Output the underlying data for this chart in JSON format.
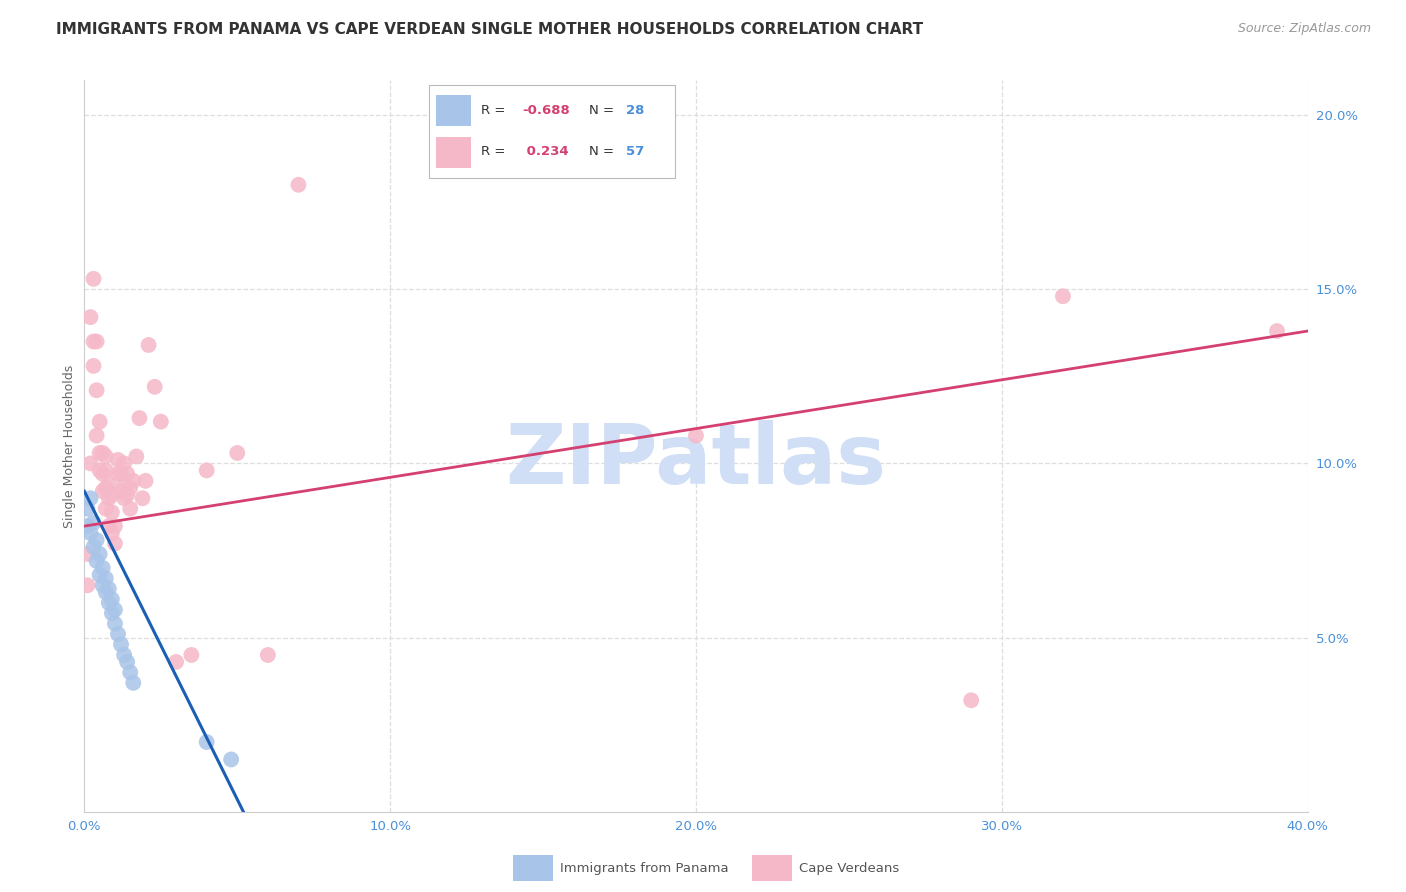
{
  "title": "IMMIGRANTS FROM PANAMA VS CAPE VERDEAN SINGLE MOTHER HOUSEHOLDS CORRELATION CHART",
  "source": "Source: ZipAtlas.com",
  "ylabel": "Single Mother Households",
  "watermark": "ZIPatlas",
  "legend_blue_r": "-0.688",
  "legend_blue_n": "28",
  "legend_pink_r": "0.234",
  "legend_pink_n": "57",
  "xlim": [
    0.0,
    0.4
  ],
  "ylim": [
    0.0,
    0.21
  ],
  "xticks": [
    0.0,
    0.1,
    0.2,
    0.3,
    0.4
  ],
  "yticks_right": [
    0.05,
    0.1,
    0.15,
    0.2
  ],
  "blue_scatter_color": "#a8c4e8",
  "pink_scatter_color": "#f5b8c8",
  "blue_line_color": "#1a5fb4",
  "pink_line_color": "#d44070",
  "tick_color": "#4a90d9",
  "grid_color": "#dedede",
  "background_color": "#ffffff",
  "title_color": "#333333",
  "source_color": "#999999",
  "ylabel_color": "#666666",
  "watermark_color": "#d0dff5",
  "title_fontsize": 11,
  "source_fontsize": 9,
  "tick_fontsize": 9.5,
  "ylabel_fontsize": 9,
  "watermark_fontsize": 60,
  "blue_points_x": [
    0.001,
    0.001,
    0.002,
    0.002,
    0.003,
    0.003,
    0.004,
    0.004,
    0.005,
    0.005,
    0.006,
    0.006,
    0.007,
    0.007,
    0.008,
    0.008,
    0.009,
    0.009,
    0.01,
    0.01,
    0.011,
    0.012,
    0.013,
    0.014,
    0.015,
    0.016,
    0.04,
    0.048
  ],
  "blue_points_y": [
    0.087,
    0.082,
    0.09,
    0.08,
    0.076,
    0.083,
    0.072,
    0.078,
    0.068,
    0.074,
    0.065,
    0.07,
    0.063,
    0.067,
    0.06,
    0.064,
    0.057,
    0.061,
    0.054,
    0.058,
    0.051,
    0.048,
    0.045,
    0.043,
    0.04,
    0.037,
    0.02,
    0.015
  ],
  "pink_points_x": [
    0.001,
    0.001,
    0.002,
    0.002,
    0.003,
    0.003,
    0.003,
    0.004,
    0.004,
    0.004,
    0.005,
    0.005,
    0.005,
    0.006,
    0.006,
    0.006,
    0.007,
    0.007,
    0.007,
    0.007,
    0.008,
    0.008,
    0.008,
    0.009,
    0.009,
    0.009,
    0.01,
    0.01,
    0.011,
    0.011,
    0.012,
    0.012,
    0.013,
    0.013,
    0.013,
    0.014,
    0.014,
    0.015,
    0.015,
    0.016,
    0.017,
    0.018,
    0.019,
    0.02,
    0.021,
    0.023,
    0.025,
    0.03,
    0.035,
    0.04,
    0.05,
    0.06,
    0.07,
    0.2,
    0.29,
    0.32,
    0.39
  ],
  "pink_points_y": [
    0.074,
    0.065,
    0.142,
    0.1,
    0.153,
    0.135,
    0.128,
    0.121,
    0.135,
    0.108,
    0.098,
    0.103,
    0.112,
    0.092,
    0.097,
    0.103,
    0.087,
    0.093,
    0.098,
    0.102,
    0.082,
    0.09,
    0.094,
    0.08,
    0.086,
    0.091,
    0.077,
    0.082,
    0.097,
    0.101,
    0.092,
    0.097,
    0.09,
    0.094,
    0.1,
    0.091,
    0.097,
    0.087,
    0.093,
    0.095,
    0.102,
    0.113,
    0.09,
    0.095,
    0.134,
    0.122,
    0.112,
    0.043,
    0.045,
    0.098,
    0.103,
    0.045,
    0.18,
    0.108,
    0.032,
    0.148,
    0.138
  ],
  "blue_line_x0": 0.0,
  "blue_line_x1": 0.052,
  "blue_line_y0": 0.092,
  "blue_line_y1": 0.0,
  "pink_line_x0": 0.0,
  "pink_line_x1": 0.4,
  "pink_line_y0": 0.082,
  "pink_line_y1": 0.138,
  "scatter_size": 130,
  "scatter_alpha": 0.85
}
